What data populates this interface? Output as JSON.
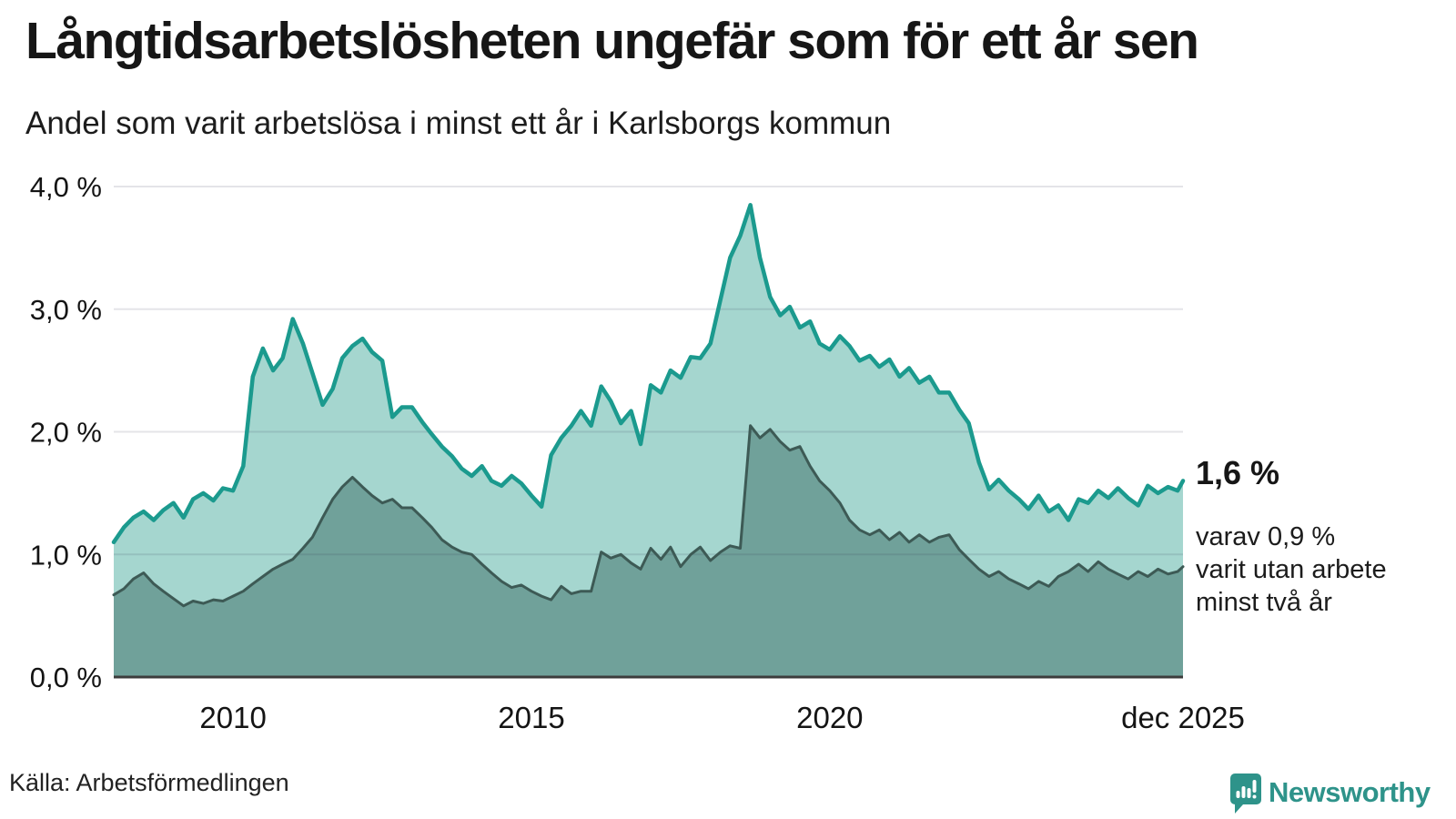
{
  "header": {
    "title": "Långtidsarbetslösheten ungefär som för ett år sen",
    "subtitle": "Andel som varit arbetslösa i minst ett år i Karlsborgs kommun"
  },
  "colors": {
    "line_primary": "#1b9a8e",
    "fill_primary": "#a5d6cf",
    "line_secondary": "#3d5a55",
    "fill_secondary": "#70a19a",
    "grid": "#30304d",
    "baseline": "#3c3c3c",
    "text": "#161616",
    "logo": "#2e938a"
  },
  "chart_data": {
    "type": "area",
    "title": "Långtidsarbetslösheten ungefär som för ett år sen",
    "subtitle": "Andel som varit arbetslösa i minst ett år i Karlsborgs kommun",
    "xlabel": "",
    "ylabel": "",
    "ylim": [
      0,
      4.0
    ],
    "x_range": [
      2008.0,
      2025.92
    ],
    "grid": "horizontal",
    "y_ticks": [
      {
        "value": 0.0,
        "label": "0,0 %"
      },
      {
        "value": 1.0,
        "label": "1,0 %"
      },
      {
        "value": 2.0,
        "label": "2,0 %"
      },
      {
        "value": 3.0,
        "label": "3,0 %"
      },
      {
        "value": 4.0,
        "label": "4,0 %"
      }
    ],
    "x_ticks": [
      {
        "value": 2010.0,
        "label": "2010"
      },
      {
        "value": 2015.0,
        "label": "2015"
      },
      {
        "value": 2020.0,
        "label": "2020"
      },
      {
        "value": 2025.92,
        "label": "dec 2025"
      }
    ],
    "x": [
      2008.0,
      2008.17,
      2008.33,
      2008.5,
      2008.67,
      2008.83,
      2009.0,
      2009.17,
      2009.33,
      2009.5,
      2009.67,
      2009.83,
      2010.0,
      2010.17,
      2010.33,
      2010.5,
      2010.67,
      2010.83,
      2011.0,
      2011.17,
      2011.33,
      2011.5,
      2011.67,
      2011.83,
      2012.0,
      2012.17,
      2012.33,
      2012.5,
      2012.67,
      2012.83,
      2013.0,
      2013.17,
      2013.33,
      2013.5,
      2013.67,
      2013.83,
      2014.0,
      2014.17,
      2014.33,
      2014.5,
      2014.67,
      2014.83,
      2015.0,
      2015.17,
      2015.33,
      2015.5,
      2015.67,
      2015.83,
      2016.0,
      2016.17,
      2016.33,
      2016.5,
      2016.67,
      2016.83,
      2017.0,
      2017.17,
      2017.33,
      2017.5,
      2017.67,
      2017.83,
      2018.0,
      2018.17,
      2018.33,
      2018.5,
      2018.67,
      2018.83,
      2019.0,
      2019.17,
      2019.33,
      2019.5,
      2019.67,
      2019.83,
      2020.0,
      2020.17,
      2020.33,
      2020.5,
      2020.67,
      2020.83,
      2021.0,
      2021.17,
      2021.33,
      2021.5,
      2021.67,
      2021.83,
      2022.0,
      2022.17,
      2022.33,
      2022.5,
      2022.67,
      2022.83,
      2023.0,
      2023.17,
      2023.33,
      2023.5,
      2023.67,
      2023.83,
      2024.0,
      2024.17,
      2024.33,
      2024.5,
      2024.67,
      2024.83,
      2025.0,
      2025.17,
      2025.33,
      2025.5,
      2025.67,
      2025.83,
      2025.92
    ],
    "series": [
      {
        "name": "Andel arbetslösa minst ett år",
        "end_value_label": "1,6 %",
        "values": [
          1.1,
          1.22,
          1.3,
          1.35,
          1.28,
          1.36,
          1.42,
          1.3,
          1.45,
          1.5,
          1.44,
          1.54,
          1.52,
          1.72,
          2.45,
          2.68,
          2.5,
          2.6,
          2.92,
          2.72,
          2.48,
          2.22,
          2.35,
          2.6,
          2.7,
          2.76,
          2.65,
          2.58,
          2.12,
          2.2,
          2.2,
          2.08,
          1.98,
          1.88,
          1.8,
          1.7,
          1.64,
          1.72,
          1.6,
          1.56,
          1.64,
          1.58,
          1.48,
          1.39,
          1.81,
          1.95,
          2.05,
          2.17,
          2.05,
          2.37,
          2.25,
          2.07,
          2.17,
          1.9,
          2.38,
          2.32,
          2.5,
          2.44,
          2.61,
          2.6,
          2.72,
          3.08,
          3.42,
          3.6,
          3.85,
          3.42,
          3.1,
          2.95,
          3.02,
          2.85,
          2.9,
          2.72,
          2.67,
          2.78,
          2.7,
          2.58,
          2.62,
          2.53,
          2.59,
          2.45,
          2.52,
          2.4,
          2.45,
          2.32,
          2.32,
          2.18,
          2.07,
          1.75,
          1.53,
          1.61,
          1.52,
          1.45,
          1.37,
          1.48,
          1.35,
          1.4,
          1.28,
          1.45,
          1.42,
          1.52,
          1.46,
          1.54,
          1.46,
          1.4,
          1.56,
          1.5,
          1.55,
          1.52,
          1.6
        ]
      },
      {
        "name": "varav arbetslösa minst två år",
        "end_value_label": "0,9 %",
        "values": [
          0.67,
          0.72,
          0.8,
          0.85,
          0.76,
          0.7,
          0.64,
          0.58,
          0.62,
          0.6,
          0.63,
          0.62,
          0.66,
          0.7,
          0.76,
          0.82,
          0.88,
          0.92,
          0.96,
          1.05,
          1.14,
          1.3,
          1.45,
          1.55,
          1.63,
          1.55,
          1.48,
          1.42,
          1.45,
          1.38,
          1.38,
          1.3,
          1.22,
          1.12,
          1.06,
          1.02,
          1.0,
          0.92,
          0.85,
          0.78,
          0.73,
          0.75,
          0.7,
          0.66,
          0.63,
          0.74,
          0.68,
          0.7,
          0.7,
          1.02,
          0.97,
          1.0,
          0.93,
          0.88,
          1.05,
          0.96,
          1.06,
          0.9,
          1.0,
          1.06,
          0.95,
          1.02,
          1.07,
          1.05,
          2.05,
          1.95,
          2.02,
          1.92,
          1.85,
          1.88,
          1.72,
          1.6,
          1.52,
          1.42,
          1.28,
          1.2,
          1.16,
          1.2,
          1.12,
          1.18,
          1.1,
          1.16,
          1.1,
          1.14,
          1.16,
          1.04,
          0.96,
          0.88,
          0.82,
          0.86,
          0.8,
          0.76,
          0.72,
          0.78,
          0.74,
          0.82,
          0.86,
          0.92,
          0.86,
          0.94,
          0.88,
          0.84,
          0.8,
          0.86,
          0.82,
          0.88,
          0.84,
          0.86,
          0.9
        ]
      }
    ],
    "annotations": {
      "primary": "1,6 %",
      "secondary_lines": [
        "varav 0,9 %",
        "varit utan arbete",
        "minst två år"
      ]
    }
  },
  "footer": {
    "source": "Källa: Arbetsförmedlingen",
    "logo_text": "Newsworthy"
  }
}
